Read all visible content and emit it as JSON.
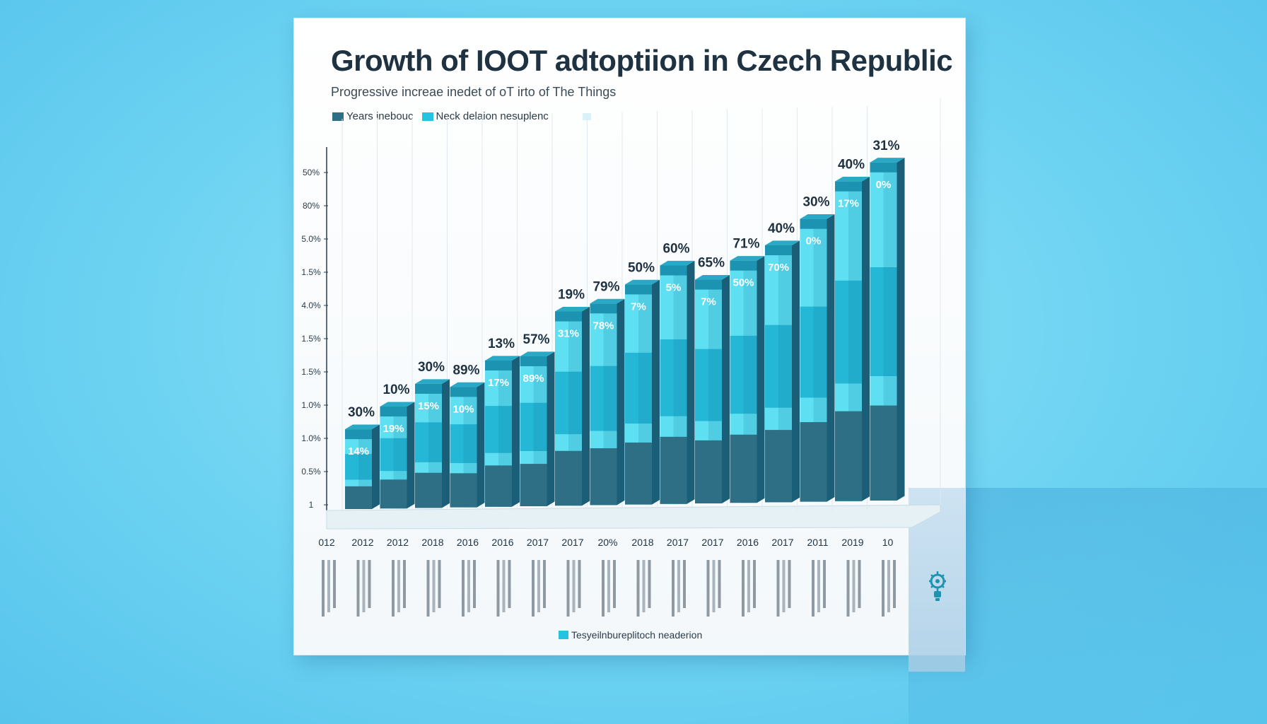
{
  "title": "Growth of IOOT adtoptiion in  Czech Republic",
  "subtitle": "Progressive increae inedet of oT irto of The Things",
  "legend": {
    "item1": "Years inebouc",
    "item2": "Neck delaion nesuplenc",
    "bottom": "Tesyeilnbureplitoch neaderion"
  },
  "colors": {
    "dark": "#2e6f86",
    "mid": "#24b7d6",
    "light": "#5fe0f2",
    "top": "#1c93b0",
    "background": "#6dd3f2"
  },
  "icon": "lightbulb-gear-icon",
  "chart_data": {
    "type": "bar",
    "title": "Growth of IOOT adtoptiion in  Czech Republic",
    "y_tick_labels": [
      "1",
      "0.5%",
      "1.0%",
      "1.0%",
      "1.5%",
      "1.5%",
      "4.0%",
      "1.5%",
      "5.0%",
      "80%",
      "50%"
    ],
    "categories": [
      "2012",
      "2012",
      "2018",
      "2016",
      "2016",
      "2017",
      "2017",
      "20%",
      "2018",
      "2017",
      "2017",
      "2016",
      "2017",
      "2011",
      "2019",
      "10"
    ],
    "first_tick": "012",
    "top_labels": [
      "30%",
      "10%",
      "30%",
      "89%",
      "13%",
      "57%",
      "19%",
      "79%",
      "50%",
      "60%",
      "65%",
      "71%",
      "40%",
      "30%",
      "40%",
      "31%"
    ],
    "inner_labels": [
      "14%",
      "19%",
      "15%",
      "10%",
      "17%",
      "89%",
      "31%",
      "78%",
      "7%",
      "5%",
      "7%",
      "50%",
      "70%",
      "0%",
      "17%",
      "0%"
    ],
    "values": [
      22,
      28,
      34,
      33,
      40,
      41,
      53,
      55,
      60,
      65,
      61,
      66,
      70,
      77,
      87,
      92
    ],
    "ylim": [
      0,
      100
    ]
  }
}
